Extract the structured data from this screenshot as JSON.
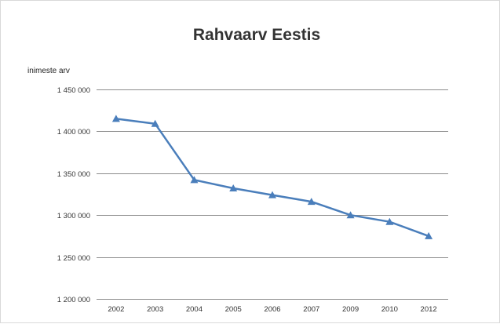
{
  "chart_data": {
    "type": "line",
    "title": "Rahvaarv Eestis",
    "xlabel": "",
    "ylabel": "inimeste arv",
    "categories": [
      "2002",
      "2003",
      "2004",
      "2005",
      "2006",
      "2007",
      "2009",
      "2010",
      "2012"
    ],
    "series": [
      {
        "values": [
          1415000,
          1409000,
          1342000,
          1332000,
          1324000,
          1316000,
          1300000,
          1292000,
          1275000
        ],
        "marker": "triangle",
        "color": "#4a7ebb"
      }
    ],
    "ylim": [
      1200000,
      1450000
    ],
    "yticks": [
      1450000,
      1400000,
      1350000,
      1300000,
      1250000,
      1200000
    ],
    "ytick_labels": [
      "1 450 000",
      "1 400 000",
      "1 350 000",
      "1 300 000",
      "1 250 000",
      "1 200 000"
    ],
    "grid": true,
    "legend": "none"
  }
}
